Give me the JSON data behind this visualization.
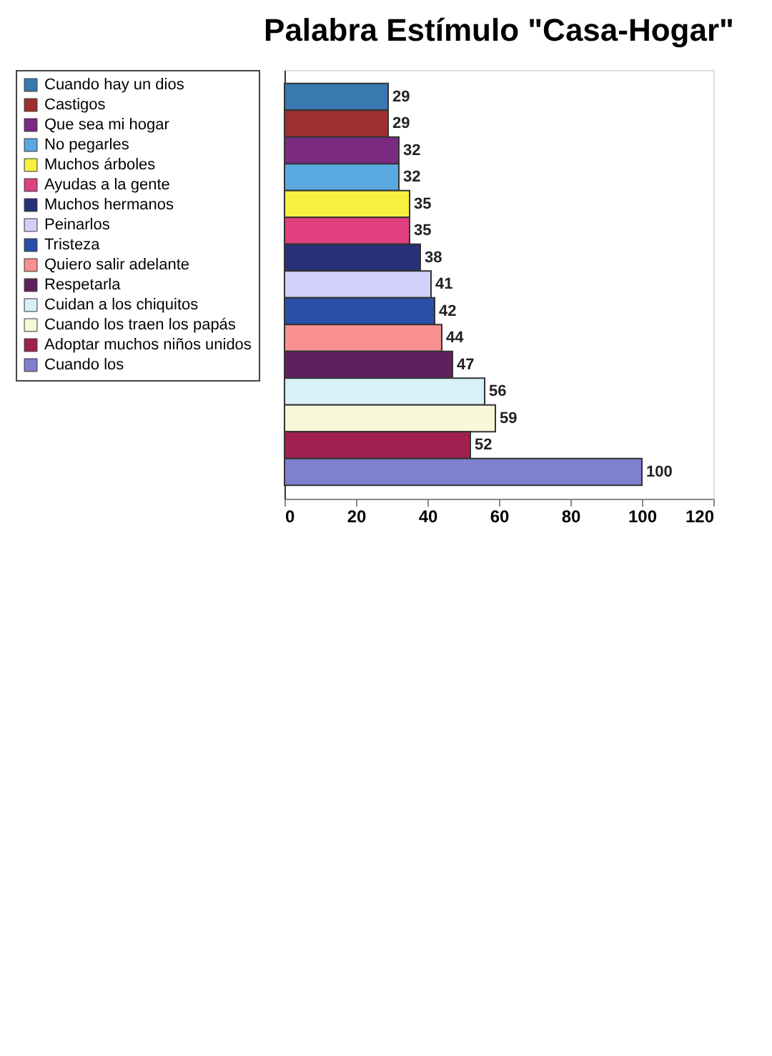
{
  "chart_data": {
    "type": "bar",
    "orientation": "horizontal",
    "title": "Palabra Estímulo \"Casa-Hogar\"",
    "categories": [
      null,
      null,
      null,
      null,
      null,
      null,
      null,
      null,
      null,
      null,
      null,
      null,
      null,
      null,
      null
    ],
    "series": [
      {
        "name": "Cuando hay un dios",
        "color": "#3a78b0",
        "values": [
          29,
          null,
          null,
          null,
          null,
          null,
          null,
          null,
          null,
          null,
          null,
          null,
          null,
          null,
          null
        ]
      },
      {
        "name": "Castigos",
        "color": "#a03030",
        "values": [
          null,
          29,
          null,
          null,
          null,
          null,
          null,
          null,
          null,
          null,
          null,
          null,
          null,
          null,
          null
        ]
      },
      {
        "name": "Que sea mi hogar",
        "color": "#7a2a80",
        "values": [
          null,
          null,
          32,
          null,
          null,
          null,
          null,
          null,
          null,
          null,
          null,
          null,
          null,
          null,
          null
        ]
      },
      {
        "name": "No pegarles",
        "color": "#5aa8e0",
        "values": [
          null,
          null,
          null,
          32,
          null,
          null,
          null,
          null,
          null,
          null,
          null,
          null,
          null,
          null,
          null
        ]
      },
      {
        "name": "Muchos árboles",
        "color": "#f8f040",
        "values": [
          null,
          null,
          null,
          null,
          35,
          null,
          null,
          null,
          null,
          null,
          null,
          null,
          null,
          null,
          null
        ]
      },
      {
        "name": "Ayudas a la gente",
        "color": "#e04080",
        "values": [
          null,
          null,
          null,
          null,
          null,
          35,
          null,
          null,
          null,
          null,
          null,
          null,
          null,
          null,
          null
        ]
      },
      {
        "name": "Muchos hermanos",
        "color": "#283078",
        "values": [
          null,
          null,
          null,
          null,
          null,
          null,
          38,
          null,
          null,
          null,
          null,
          null,
          null,
          null,
          null
        ]
      },
      {
        "name": "Peinarlos",
        "color": "#d0d0f8",
        "values": [
          null,
          null,
          null,
          null,
          null,
          null,
          null,
          41,
          null,
          null,
          null,
          null,
          null,
          null,
          null
        ]
      },
      {
        "name": "Tristeza",
        "color": "#2850a8",
        "values": [
          null,
          null,
          null,
          null,
          null,
          null,
          null,
          null,
          42,
          null,
          null,
          null,
          null,
          null,
          null
        ]
      },
      {
        "name": "Quiero salir adelante",
        "color": "#f89090",
        "values": [
          null,
          null,
          null,
          null,
          null,
          null,
          null,
          null,
          null,
          44,
          null,
          null,
          null,
          null,
          null
        ]
      },
      {
        "name": "Respetarla",
        "color": "#602060",
        "values": [
          null,
          null,
          null,
          null,
          null,
          null,
          null,
          null,
          null,
          null,
          47,
          null,
          null,
          null,
          null
        ]
      },
      {
        "name": "Cuidan a los chiquitos",
        "color": "#d8f0f8",
        "values": [
          null,
          null,
          null,
          null,
          null,
          null,
          null,
          null,
          null,
          null,
          null,
          56,
          null,
          null,
          null
        ]
      },
      {
        "name": "Cuando los traen los papás",
        "color": "#f8f8d8",
        "values": [
          null,
          null,
          null,
          null,
          null,
          null,
          null,
          null,
          null,
          null,
          null,
          null,
          59,
          null,
          null
        ]
      },
      {
        "name": "Adoptar muchos niños unidos",
        "color": "#a02050",
        "values": [
          null,
          null,
          null,
          null,
          null,
          null,
          null,
          null,
          null,
          null,
          null,
          null,
          null,
          52,
          null
        ]
      },
      {
        "name": "Cuando los",
        "color": "#8080d0",
        "values": [
          null,
          null,
          null,
          null,
          null,
          null,
          null,
          null,
          null,
          null,
          null,
          null,
          null,
          null,
          100
        ]
      }
    ],
    "xlim": [
      0,
      120
    ],
    "xticks": [
      0,
      20,
      40,
      60,
      80,
      100,
      120
    ],
    "data_labels": true,
    "legend": "left",
    "grid": false,
    "tick_labels": "x"
  }
}
